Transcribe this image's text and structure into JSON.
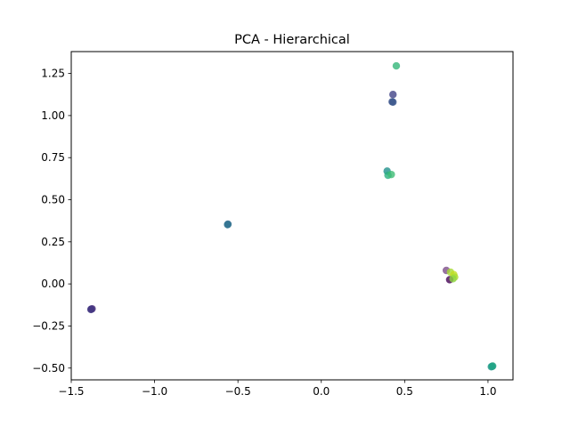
{
  "chart_data": {
    "type": "scatter",
    "title": "PCA - Hierarchical",
    "xlabel": "",
    "ylabel": "",
    "xlim": [
      -1.5,
      1.15
    ],
    "ylim": [
      -0.57,
      1.38
    ],
    "xticks": [
      -1.5,
      -1.0,
      -0.5,
      0.0,
      0.5,
      1.0
    ],
    "xtick_labels": [
      "−1.5",
      "−1.0",
      "−0.5",
      "0.0",
      "0.5",
      "1.0"
    ],
    "yticks": [
      -0.5,
      -0.25,
      0.0,
      0.25,
      0.5,
      0.75,
      1.0,
      1.25
    ],
    "ytick_labels": [
      "−0.50",
      "−0.25",
      "0.00",
      "0.25",
      "0.50",
      "0.75",
      "1.00",
      "1.25"
    ],
    "grid": false,
    "legend": "none",
    "points": [
      {
        "x": -1.38,
        "y": -0.15,
        "color": "#46327e"
      },
      {
        "x": -1.375,
        "y": -0.148,
        "color": "#472d7b"
      },
      {
        "x": -1.382,
        "y": -0.152,
        "color": "#443a83"
      },
      {
        "x": -0.56,
        "y": 0.355,
        "color": "#31688e"
      },
      {
        "x": -0.562,
        "y": 0.352,
        "color": "#2c728e"
      },
      {
        "x": 0.45,
        "y": 1.295,
        "color": "#35b779"
      },
      {
        "x": 0.43,
        "y": 1.125,
        "color": "#414487"
      },
      {
        "x": 0.425,
        "y": 1.082,
        "color": "#3b528b"
      },
      {
        "x": 0.43,
        "y": 1.08,
        "color": "#39568c"
      },
      {
        "x": 0.395,
        "y": 0.67,
        "color": "#21918c"
      },
      {
        "x": 0.4,
        "y": 0.645,
        "color": "#2ab07f"
      },
      {
        "x": 0.42,
        "y": 0.65,
        "color": "#3dbc74"
      },
      {
        "x": 0.75,
        "y": 0.08,
        "color": "#7d4e8a"
      },
      {
        "x": 0.775,
        "y": 0.07,
        "color": "#a8db34"
      },
      {
        "x": 0.795,
        "y": 0.055,
        "color": "#c2df23"
      },
      {
        "x": 0.8,
        "y": 0.04,
        "color": "#addc30"
      },
      {
        "x": 0.77,
        "y": 0.025,
        "color": "#440154"
      },
      {
        "x": 0.79,
        "y": 0.03,
        "color": "#8fd744"
      },
      {
        "x": 1.025,
        "y": -0.49,
        "color": "#287d8e"
      },
      {
        "x": 1.02,
        "y": -0.492,
        "color": "#1f9a8a"
      },
      {
        "x": 1.028,
        "y": -0.488,
        "color": "#22a884"
      }
    ]
  }
}
